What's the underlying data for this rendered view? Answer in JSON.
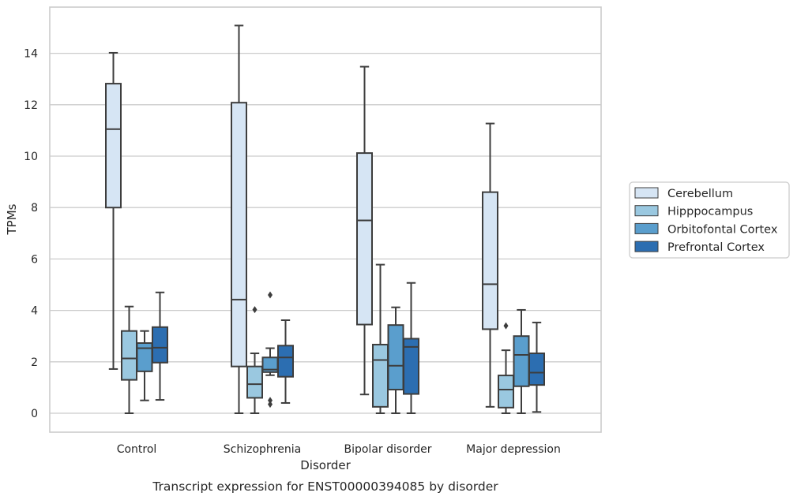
{
  "chart_data": {
    "type": "box",
    "caption": "Transcript expression for ENST00000394085 by disorder",
    "xlabel": "Disorder",
    "ylabel": "TPMs",
    "ylim": [
      -0.75,
      15.75
    ],
    "yticks": [
      0,
      2,
      4,
      6,
      8,
      10,
      12,
      14
    ],
    "grid": "horizontal",
    "legend_position": "right",
    "categories": [
      "Control",
      "Schizophrenia",
      "Bipolar disorder",
      "Major depression"
    ],
    "series": [
      {
        "name": "Cerebellum",
        "color": "#d6e5f4",
        "boxes": [
          {
            "whislo": 1.72,
            "q1": 8.0,
            "med": 11.05,
            "q3": 12.82,
            "whishi": 14.02,
            "fliers": []
          },
          {
            "whislo": 0.0,
            "q1": 1.82,
            "med": 4.42,
            "q3": 12.08,
            "whishi": 15.08,
            "fliers": []
          },
          {
            "whislo": 0.73,
            "q1": 3.45,
            "med": 7.5,
            "q3": 10.12,
            "whishi": 13.48,
            "fliers": []
          },
          {
            "whislo": 0.25,
            "q1": 3.27,
            "med": 5.02,
            "q3": 8.6,
            "whishi": 11.27,
            "fliers": []
          }
        ]
      },
      {
        "name": "Hipppocampus",
        "color": "#9ac8e0",
        "boxes": [
          {
            "whislo": 0.0,
            "q1": 1.3,
            "med": 2.13,
            "q3": 3.2,
            "whishi": 4.15,
            "fliers": []
          },
          {
            "whislo": 0.0,
            "q1": 0.6,
            "med": 1.13,
            "q3": 1.82,
            "whishi": 2.33,
            "fliers": [
              4.03
            ]
          },
          {
            "whislo": 0.0,
            "q1": 0.25,
            "med": 2.07,
            "q3": 2.67,
            "whishi": 5.78,
            "fliers": []
          },
          {
            "whislo": 0.0,
            "q1": 0.22,
            "med": 0.92,
            "q3": 1.47,
            "whishi": 2.45,
            "fliers": [
              3.4
            ]
          }
        ]
      },
      {
        "name": "Orbitofontal Cortex",
        "color": "#5a9ecd",
        "boxes": [
          {
            "whislo": 0.5,
            "q1": 1.63,
            "med": 2.53,
            "q3": 2.73,
            "whishi": 3.2,
            "fliers": []
          },
          {
            "whislo": 1.48,
            "q1": 1.6,
            "med": 1.7,
            "q3": 2.17,
            "whishi": 2.53,
            "fliers": [
              4.6,
              0.5,
              0.35
            ]
          },
          {
            "whislo": 0.0,
            "q1": 0.92,
            "med": 1.85,
            "q3": 3.43,
            "whishi": 4.12,
            "fliers": []
          },
          {
            "whislo": 0.0,
            "q1": 1.05,
            "med": 2.27,
            "q3": 3.0,
            "whishi": 4.02,
            "fliers": []
          }
        ]
      },
      {
        "name": "Prefrontal Cortex",
        "color": "#2c6eb1",
        "boxes": [
          {
            "whislo": 0.52,
            "q1": 1.97,
            "med": 2.55,
            "q3": 3.35,
            "whishi": 4.7,
            "fliers": []
          },
          {
            "whislo": 0.4,
            "q1": 1.42,
            "med": 2.17,
            "q3": 2.63,
            "whishi": 3.62,
            "fliers": []
          },
          {
            "whislo": 0.0,
            "q1": 0.75,
            "med": 2.58,
            "q3": 2.9,
            "whishi": 5.07,
            "fliers": []
          },
          {
            "whislo": 0.05,
            "q1": 1.1,
            "med": 1.58,
            "q3": 2.33,
            "whishi": 3.53,
            "fliers": []
          }
        ]
      }
    ]
  }
}
